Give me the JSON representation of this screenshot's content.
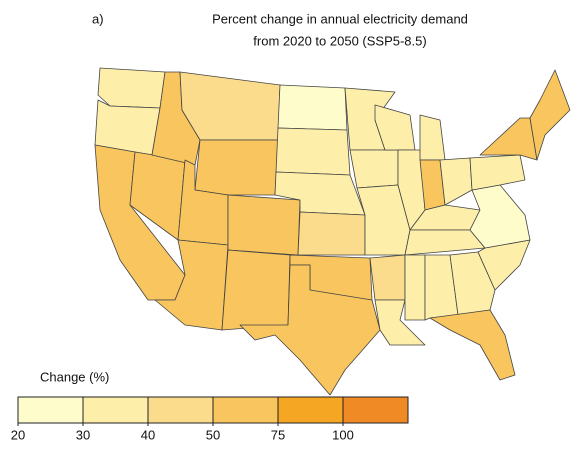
{
  "title": {
    "label": "a)",
    "lines": [
      "Percent change in annual electricity demand",
      "from 2020 to 2050 (SSP5-8.5)"
    ]
  },
  "legend": {
    "title": "Change (%)",
    "colors": [
      "#fffccc",
      "#fdeeaa",
      "#fbdc8c",
      "#f8c55e",
      "#f5a623",
      "#f08a24"
    ],
    "ticks": [
      20,
      30,
      40,
      50,
      75,
      100
    ]
  }
}
